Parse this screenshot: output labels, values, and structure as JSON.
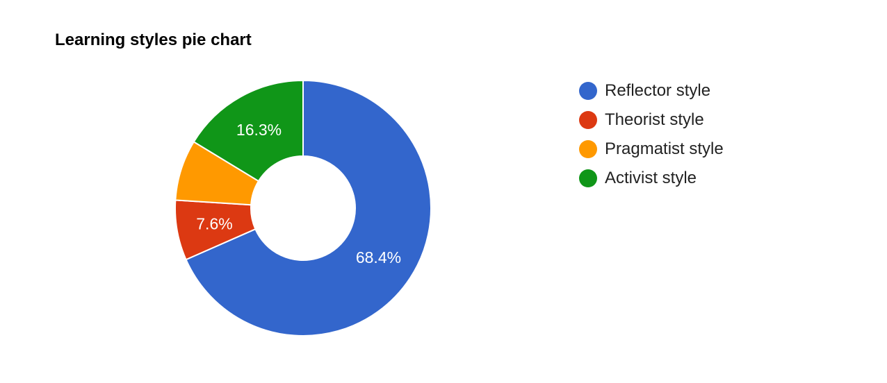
{
  "chart_data": {
    "type": "pie",
    "title": "Learning styles pie chart",
    "donut": true,
    "legend_position": "right",
    "slices": [
      {
        "label": "Reflector style",
        "value": 68.4,
        "display": "68.4%",
        "color": "#3366cc"
      },
      {
        "label": "Theorist style",
        "value": 7.6,
        "display": "7.6%",
        "color": "#dc3912"
      },
      {
        "label": "Pragmatist style",
        "value": 7.7,
        "display": "",
        "color": "#ff9900"
      },
      {
        "label": "Activist style",
        "value": 16.3,
        "display": "16.3%",
        "color": "#109618"
      }
    ]
  }
}
